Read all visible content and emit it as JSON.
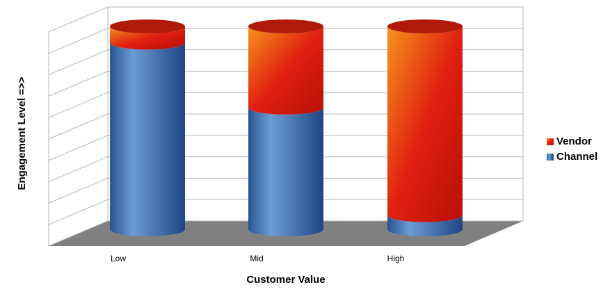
{
  "chart_data": {
    "type": "bar3d_stacked",
    "x_label": "Customer Value",
    "y_label": "Engagement Level =>>",
    "categories": [
      "Low",
      "Mid",
      "High"
    ],
    "series": [
      {
        "name": "Channel",
        "color": "#4f81bd",
        "values": [
          92,
          60,
          7
        ]
      },
      {
        "name": "Vendor",
        "color": "#e8420e",
        "values": [
          8,
          40,
          93
        ]
      }
    ],
    "ylim": [
      0,
      100
    ],
    "yticks": [
      0,
      10,
      20,
      30,
      40,
      50,
      60,
      70,
      80,
      90,
      100
    ],
    "grid": true,
    "legend": "right"
  }
}
